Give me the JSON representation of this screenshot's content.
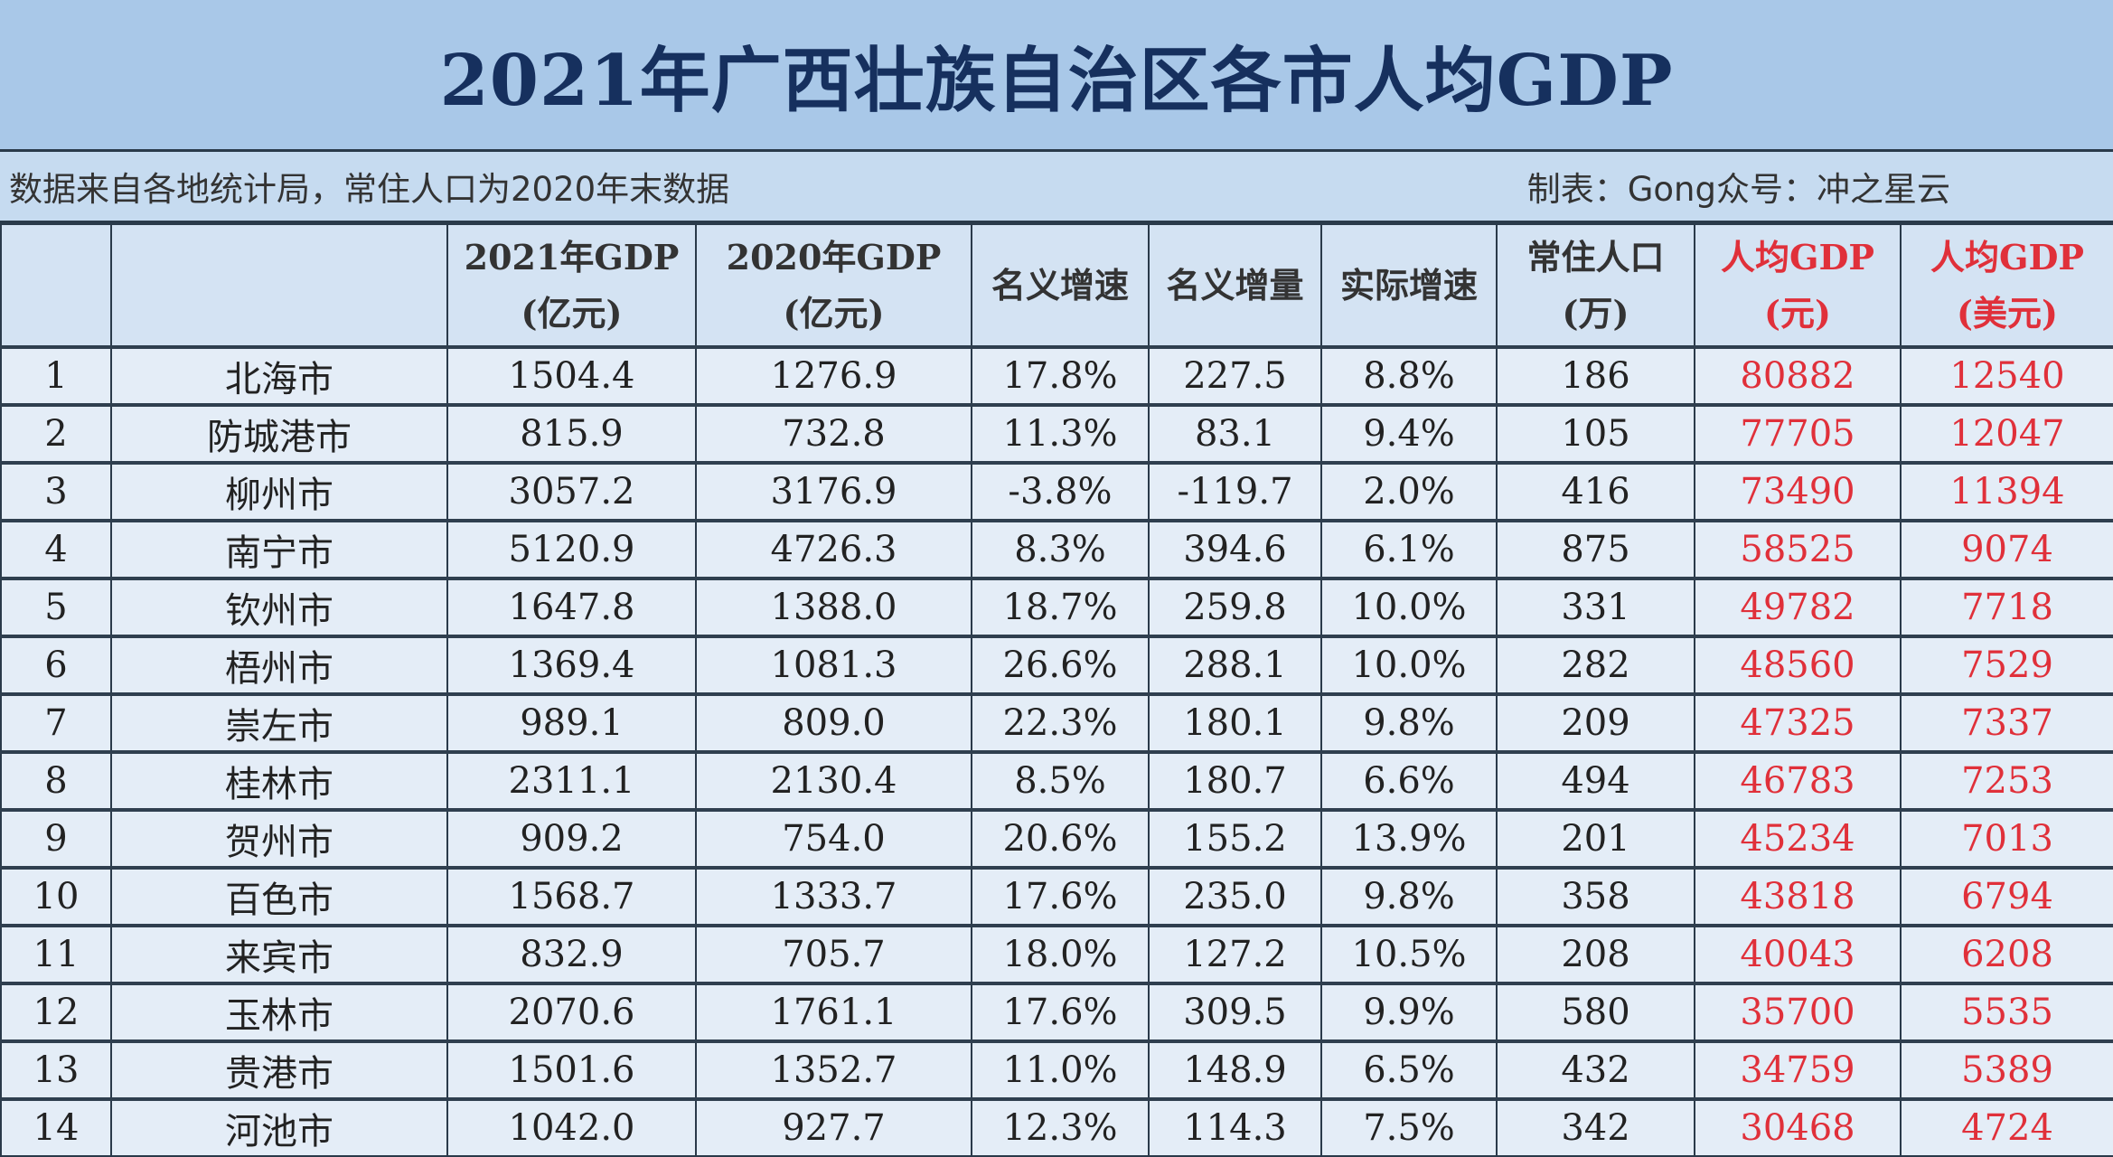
{
  "title": "2021年广西壮族自治区各市人均GDP",
  "source_note": "数据来自各地统计局，常住人口为2020年末数据",
  "credit": "制表：Gong众号：冲之星云",
  "accent_color": "#e0303a",
  "headers": [
    {
      "line1": "",
      "line2": ""
    },
    {
      "line1": "",
      "line2": ""
    },
    {
      "line1": "2021年GDP",
      "line2": "(亿元)"
    },
    {
      "line1": "2020年GDP",
      "line2": "(亿元)"
    },
    {
      "line1": "名义增速",
      "line2": ""
    },
    {
      "line1": "名义增量",
      "line2": ""
    },
    {
      "line1": "实际增速",
      "line2": ""
    },
    {
      "line1": "常住人口",
      "line2": "(万)"
    },
    {
      "line1": "人均GDP",
      "line2": "(元)"
    },
    {
      "line1": "人均GDP",
      "line2": "(美元)"
    }
  ],
  "rows": [
    [
      "1",
      "北海市",
      "1504.4",
      "1276.9",
      "17.8%",
      "227.5",
      "8.8%",
      "186",
      "80882",
      "12540"
    ],
    [
      "2",
      "防城港市",
      "815.9",
      "732.8",
      "11.3%",
      "83.1",
      "9.4%",
      "105",
      "77705",
      "12047"
    ],
    [
      "3",
      "柳州市",
      "3057.2",
      "3176.9",
      "-3.8%",
      "-119.7",
      "2.0%",
      "416",
      "73490",
      "11394"
    ],
    [
      "4",
      "南宁市",
      "5120.9",
      "4726.3",
      "8.3%",
      "394.6",
      "6.1%",
      "875",
      "58525",
      "9074"
    ],
    [
      "5",
      "钦州市",
      "1647.8",
      "1388.0",
      "18.7%",
      "259.8",
      "10.0%",
      "331",
      "49782",
      "7718"
    ],
    [
      "6",
      "梧州市",
      "1369.4",
      "1081.3",
      "26.6%",
      "288.1",
      "10.0%",
      "282",
      "48560",
      "7529"
    ],
    [
      "7",
      "崇左市",
      "989.1",
      "809.0",
      "22.3%",
      "180.1",
      "9.8%",
      "209",
      "47325",
      "7337"
    ],
    [
      "8",
      "桂林市",
      "2311.1",
      "2130.4",
      "8.5%",
      "180.7",
      "6.6%",
      "494",
      "46783",
      "7253"
    ],
    [
      "9",
      "贺州市",
      "909.2",
      "754.0",
      "20.6%",
      "155.2",
      "13.9%",
      "201",
      "45234",
      "7013"
    ],
    [
      "10",
      "百色市",
      "1568.7",
      "1333.7",
      "17.6%",
      "235.0",
      "9.8%",
      "358",
      "43818",
      "6794"
    ],
    [
      "11",
      "来宾市",
      "832.9",
      "705.7",
      "18.0%",
      "127.2",
      "10.5%",
      "208",
      "40043",
      "6208"
    ],
    [
      "12",
      "玉林市",
      "2070.6",
      "1761.1",
      "17.6%",
      "309.5",
      "9.9%",
      "580",
      "35700",
      "5535"
    ],
    [
      "13",
      "贵港市",
      "1501.6",
      "1352.7",
      "11.0%",
      "148.9",
      "6.5%",
      "432",
      "34759",
      "5389"
    ],
    [
      "14",
      "河池市",
      "1042.0",
      "927.7",
      "12.3%",
      "114.3",
      "7.5%",
      "342",
      "30468",
      "4724"
    ]
  ]
}
